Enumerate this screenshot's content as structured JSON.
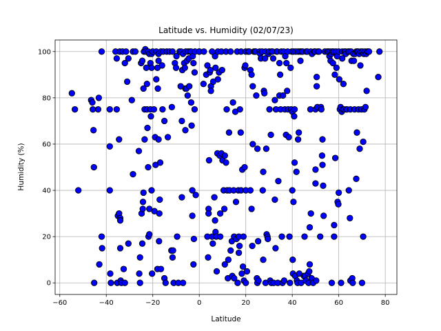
{
  "chart_data": {
    "type": "scatter",
    "title": "Latitude vs. Humidity (02/07/23)",
    "xlabel": "Latitude",
    "ylabel": "Humidity (%)",
    "xlim": [
      -62,
      85
    ],
    "ylim": [
      -5,
      105
    ],
    "xticks": [
      -60,
      -40,
      -20,
      0,
      20,
      40,
      60,
      80
    ],
    "yticks": [
      0,
      20,
      40,
      60,
      80,
      100
    ],
    "grid": true,
    "marker_color": "#0000ff",
    "marker_edge": "#000000",
    "points": [
      [
        -54.8,
        82
      ],
      [
        -53.5,
        75
      ],
      [
        -52,
        40
      ],
      [
        -46.5,
        79
      ],
      [
        -46,
        78
      ],
      [
        -45.8,
        75
      ],
      [
        -45.5,
        66
      ],
      [
        -45.3,
        50
      ],
      [
        -45.2,
        0
      ],
      [
        -43.5,
        75
      ],
      [
        -43.2,
        80
      ],
      [
        -43,
        8
      ],
      [
        -42,
        100
      ],
      [
        -42,
        20
      ],
      [
        -41.8,
        15
      ],
      [
        -38.5,
        75
      ],
      [
        -38.5,
        59
      ],
      [
        -38.5,
        40
      ],
      [
        -38.3,
        4
      ],
      [
        -38,
        0
      ],
      [
        -36,
        100
      ],
      [
        -35.5,
        97
      ],
      [
        -35.5,
        75
      ],
      [
        -35.3,
        0
      ],
      [
        -35,
        29
      ],
      [
        -34.5,
        62
      ],
      [
        -34.5,
        30
      ],
      [
        -34.2,
        100
      ],
      [
        -34,
        28
      ],
      [
        -34,
        27
      ],
      [
        -34,
        15
      ],
      [
        -33.8,
        1
      ],
      [
        -33.5,
        0
      ],
      [
        -33,
        100
      ],
      [
        -32.5,
        6
      ],
      [
        -32,
        95
      ],
      [
        -32,
        0
      ],
      [
        -31.5,
        100
      ],
      [
        -31,
        87
      ],
      [
        -30.5,
        97
      ],
      [
        -30.5,
        17
      ],
      [
        -29,
        79
      ],
      [
        -28.5,
        47
      ],
      [
        -28.5,
        100
      ],
      [
        -27.5,
        100
      ],
      [
        -26,
        57
      ],
      [
        -25.8,
        4
      ],
      [
        -25.5,
        0
      ],
      [
        -25.5,
        11
      ],
      [
        -25,
        95
      ],
      [
        -24.8,
        30
      ],
      [
        -24.5,
        96
      ],
      [
        -24.5,
        17
      ],
      [
        -24.3,
        32
      ],
      [
        -24.2,
        35
      ],
      [
        -24,
        84
      ],
      [
        -24,
        39
      ],
      [
        -23.8,
        100
      ],
      [
        -23.5,
        75
      ],
      [
        -23.5,
        62
      ],
      [
        -23.2,
        101
      ],
      [
        -23,
        100
      ],
      [
        -22.8,
        93
      ],
      [
        -22.5,
        86
      ],
      [
        -22.5,
        75
      ],
      [
        -22.3,
        67
      ],
      [
        -22,
        50
      ],
      [
        -22,
        100
      ],
      [
        -21.8,
        20
      ],
      [
        -21.5,
        99
      ],
      [
        -21.5,
        32
      ],
      [
        -21.5,
        21
      ],
      [
        -21,
        95
      ],
      [
        -21,
        75
      ],
      [
        -20.8,
        72
      ],
      [
        -20.5,
        93
      ],
      [
        -20.5,
        99
      ],
      [
        -20.5,
        40
      ],
      [
        -20.3,
        4
      ],
      [
        -20,
        100
      ],
      [
        -19.5,
        75
      ],
      [
        -19.3,
        31
      ],
      [
        -19,
        63
      ],
      [
        -18.8,
        51
      ],
      [
        -18.5,
        100
      ],
      [
        -18.5,
        88
      ],
      [
        -18,
        93
      ],
      [
        -18,
        6
      ],
      [
        -17.8,
        84
      ],
      [
        -17.5,
        96
      ],
      [
        -17.5,
        99
      ],
      [
        -17.5,
        62
      ],
      [
        -17.3,
        18
      ],
      [
        -17.2,
        30
      ],
      [
        -17,
        36
      ],
      [
        -16.8,
        52
      ],
      [
        -16.5,
        100
      ],
      [
        -16.5,
        6
      ],
      [
        -16,
        94
      ],
      [
        -15.8,
        75
      ],
      [
        -15.5,
        100
      ],
      [
        -15,
        70
      ],
      [
        -15,
        2
      ],
      [
        -14.5,
        0
      ],
      [
        -14,
        100
      ],
      [
        -13.5,
        63
      ],
      [
        -12.8,
        100
      ],
      [
        -12,
        14
      ],
      [
        -11.8,
        76
      ],
      [
        -11.5,
        100
      ],
      [
        -11.5,
        11
      ],
      [
        -11.3,
        14
      ],
      [
        -11,
        0
      ],
      [
        -10.5,
        95
      ],
      [
        -10,
        93
      ],
      [
        -9.8,
        98
      ],
      [
        -9.5,
        20
      ],
      [
        -9,
        0
      ],
      [
        -8.5,
        100
      ],
      [
        -8,
        85
      ],
      [
        -7.8,
        100
      ],
      [
        -7.5,
        70
      ],
      [
        -7.5,
        37
      ],
      [
        -7.3,
        92
      ],
      [
        -7,
        99
      ],
      [
        -7,
        0
      ],
      [
        -6.5,
        95
      ],
      [
        -6.2,
        93
      ],
      [
        -6,
        66
      ],
      [
        -6,
        84
      ],
      [
        -5.8,
        100
      ],
      [
        -5.5,
        84
      ],
      [
        -5.3,
        96
      ],
      [
        -5,
        81
      ],
      [
        -4.8,
        100
      ],
      [
        -4.5,
        97
      ],
      [
        -4.3,
        85
      ],
      [
        -4,
        100
      ],
      [
        -3.5,
        100
      ],
      [
        -3.5,
        78
      ],
      [
        -3.3,
        68
      ],
      [
        -3,
        40
      ],
      [
        -3,
        29
      ],
      [
        -2.8,
        98
      ],
      [
        -2.5,
        95
      ],
      [
        -2.5,
        8
      ],
      [
        -2.3,
        19
      ],
      [
        -2,
        91
      ],
      [
        -2,
        75
      ],
      [
        -1.8,
        100
      ],
      [
        -1.5,
        38
      ],
      [
        0,
        100
      ],
      [
        0,
        100
      ],
      [
        1.8,
        86
      ],
      [
        2,
        100
      ],
      [
        3,
        90
      ],
      [
        3.5,
        94
      ],
      [
        3.5,
        20
      ],
      [
        3.8,
        11
      ],
      [
        4,
        32
      ],
      [
        4,
        30
      ],
      [
        4.2,
        53
      ],
      [
        4.5,
        91
      ],
      [
        4.8,
        92
      ],
      [
        5,
        85
      ],
      [
        5,
        83
      ],
      [
        5.5,
        100
      ],
      [
        5.5,
        20
      ],
      [
        5.8,
        17
      ],
      [
        6,
        87
      ],
      [
        6.5,
        37
      ],
      [
        6.8,
        98
      ],
      [
        6.8,
        27
      ],
      [
        7,
        93
      ],
      [
        7,
        22
      ],
      [
        7.3,
        20
      ],
      [
        7.5,
        5
      ],
      [
        7.8,
        56
      ],
      [
        8,
        100
      ],
      [
        8,
        88
      ],
      [
        8.5,
        91
      ],
      [
        8.8,
        55
      ],
      [
        9,
        30
      ],
      [
        9,
        20
      ],
      [
        9.5,
        100
      ],
      [
        9.5,
        56
      ],
      [
        9.8,
        92
      ],
      [
        10,
        53
      ],
      [
        10.5,
        40
      ],
      [
        10.8,
        32
      ],
      [
        11,
        8
      ],
      [
        11,
        55
      ],
      [
        11.5,
        52
      ],
      [
        11.5,
        100
      ],
      [
        11.8,
        75
      ],
      [
        12,
        40
      ],
      [
        12.3,
        2
      ],
      [
        12.5,
        10
      ],
      [
        12.8,
        65
      ],
      [
        13,
        40
      ],
      [
        13.5,
        100
      ],
      [
        13.5,
        14
      ],
      [
        14,
        18
      ],
      [
        14.2,
        3
      ],
      [
        14.5,
        78
      ],
      [
        14.8,
        40
      ],
      [
        15,
        20
      ],
      [
        15,
        2
      ],
      [
        15.5,
        74
      ],
      [
        15.8,
        35
      ],
      [
        16,
        19
      ],
      [
        16.3,
        100
      ],
      [
        16.5,
        0
      ],
      [
        16.8,
        40
      ],
      [
        17,
        20
      ],
      [
        17,
        13
      ],
      [
        17.3,
        16
      ],
      [
        17.5,
        75
      ],
      [
        17.8,
        65
      ],
      [
        18,
        100
      ],
      [
        18,
        40
      ],
      [
        18.3,
        4
      ],
      [
        18.5,
        49
      ],
      [
        18.8,
        7
      ],
      [
        19,
        20
      ],
      [
        19.2,
        1
      ],
      [
        19.5,
        93
      ],
      [
        19.5,
        50
      ],
      [
        19.8,
        94
      ],
      [
        20,
        40
      ],
      [
        20,
        0
      ],
      [
        20,
        100
      ],
      [
        20.5,
        5
      ],
      [
        21,
        100
      ],
      [
        21.5,
        100
      ],
      [
        22,
        92
      ],
      [
        22,
        40
      ],
      [
        22.5,
        32
      ],
      [
        22.5,
        90
      ],
      [
        22.8,
        16
      ],
      [
        23,
        85
      ],
      [
        23,
        60
      ],
      [
        23.5,
        100
      ],
      [
        24,
        100
      ],
      [
        24.3,
        100
      ],
      [
        24.5,
        81
      ],
      [
        24.8,
        2
      ],
      [
        25,
        0
      ],
      [
        25,
        58
      ],
      [
        25.3,
        18
      ],
      [
        25.5,
        1
      ],
      [
        26,
        100
      ],
      [
        26.2,
        99
      ],
      [
        26.5,
        97
      ],
      [
        27,
        100
      ],
      [
        27.3,
        40
      ],
      [
        27.5,
        48
      ],
      [
        27.5,
        10
      ],
      [
        27.8,
        83
      ],
      [
        28,
        82
      ],
      [
        28.3,
        97
      ],
      [
        28.5,
        0
      ],
      [
        28.5,
        100
      ],
      [
        28.8,
        58
      ],
      [
        29,
        21
      ],
      [
        29.3,
        20
      ],
      [
        29.5,
        19
      ],
      [
        29.8,
        99
      ],
      [
        30,
        100
      ],
      [
        30.2,
        75
      ],
      [
        30.5,
        1
      ],
      [
        30.8,
        64
      ],
      [
        31,
        100
      ],
      [
        31,
        0
      ],
      [
        31.5,
        100
      ],
      [
        31.8,
        97
      ],
      [
        32,
        0
      ],
      [
        32.5,
        79
      ],
      [
        32.5,
        36
      ],
      [
        32.8,
        15
      ],
      [
        33,
        75
      ],
      [
        33.3,
        100
      ],
      [
        33.5,
        100
      ],
      [
        33.8,
        0
      ],
      [
        34,
        44
      ],
      [
        34.5,
        95
      ],
      [
        34.5,
        81
      ],
      [
        34.8,
        90
      ],
      [
        35,
        75
      ],
      [
        35.3,
        100
      ],
      [
        35.5,
        20
      ],
      [
        35.8,
        0
      ],
      [
        36,
        81
      ],
      [
        36.3,
        100
      ],
      [
        36.5,
        1
      ],
      [
        36.8,
        75
      ],
      [
        37,
        98
      ],
      [
        37.3,
        64
      ],
      [
        37.5,
        95
      ],
      [
        37.8,
        83
      ],
      [
        38,
        100
      ],
      [
        38.2,
        75
      ],
      [
        38.5,
        63
      ],
      [
        38.8,
        20
      ],
      [
        39,
        0
      ],
      [
        39.3,
        93
      ],
      [
        39.5,
        75
      ],
      [
        39.8,
        100
      ],
      [
        40,
        74
      ],
      [
        40,
        40
      ],
      [
        40.2,
        10
      ],
      [
        40.3,
        4
      ],
      [
        40.5,
        100
      ],
      [
        40.5,
        35
      ],
      [
        40.8,
        72
      ],
      [
        41,
        75
      ],
      [
        41,
        52
      ],
      [
        41.3,
        3
      ],
      [
        41.5,
        100
      ],
      [
        41.8,
        48
      ],
      [
        42,
        1
      ],
      [
        42.3,
        0
      ],
      [
        42.5,
        100
      ],
      [
        42.5,
        62
      ],
      [
        42.8,
        65
      ],
      [
        43,
        4
      ],
      [
        43.3,
        100
      ],
      [
        43.5,
        96
      ],
      [
        43.8,
        0
      ],
      [
        44,
        100
      ],
      [
        44.5,
        100
      ],
      [
        45,
        3
      ],
      [
        45.3,
        20
      ],
      [
        45.5,
        3
      ],
      [
        45.8,
        1
      ],
      [
        46,
        100
      ],
      [
        46.5,
        100
      ],
      [
        46.8,
        4
      ],
      [
        47,
        0
      ],
      [
        47.3,
        5
      ],
      [
        47.5,
        24
      ],
      [
        47.5,
        8
      ],
      [
        47.8,
        75
      ],
      [
        48,
        30
      ],
      [
        48,
        100
      ],
      [
        48.3,
        2
      ],
      [
        48.5,
        99
      ],
      [
        49,
        0
      ],
      [
        49.5,
        100
      ],
      [
        49.8,
        100
      ],
      [
        50,
        75
      ],
      [
        50,
        49
      ],
      [
        50,
        43
      ],
      [
        50.3,
        1
      ],
      [
        50.5,
        89
      ],
      [
        50.5,
        85
      ],
      [
        50.8,
        76
      ],
      [
        51,
        100
      ],
      [
        51.5,
        100
      ],
      [
        52,
        20
      ],
      [
        52.3,
        76
      ],
      [
        52.5,
        75
      ],
      [
        52.8,
        55
      ],
      [
        53,
        62
      ],
      [
        53,
        51
      ],
      [
        53.3,
        42
      ],
      [
        53.5,
        29
      ],
      [
        54,
        100
      ],
      [
        55,
        100
      ],
      [
        55.5,
        100
      ],
      [
        56,
        98
      ],
      [
        56.3,
        100
      ],
      [
        56.5,
        96
      ],
      [
        56.8,
        99
      ],
      [
        57,
        0
      ],
      [
        57.2,
        100
      ],
      [
        57.5,
        95
      ],
      [
        57.8,
        100
      ],
      [
        58,
        20
      ],
      [
        58,
        25
      ],
      [
        58.3,
        90
      ],
      [
        58.5,
        54
      ],
      [
        58.8,
        100
      ],
      [
        59,
        93
      ],
      [
        59.3,
        98
      ],
      [
        59.5,
        35
      ],
      [
        59.8,
        34
      ],
      [
        60,
        100
      ],
      [
        60,
        39
      ],
      [
        60.2,
        88
      ],
      [
        60.5,
        75
      ],
      [
        60.8,
        76
      ],
      [
        61,
        0
      ],
      [
        61.3,
        74
      ],
      [
        61.5,
        100
      ],
      [
        61.5,
        97
      ],
      [
        61.8,
        75
      ],
      [
        62,
        86
      ],
      [
        62.3,
        75
      ],
      [
        62.5,
        100
      ],
      [
        62.8,
        100
      ],
      [
        63,
        99
      ],
      [
        63.3,
        75
      ],
      [
        63.5,
        75
      ],
      [
        64,
        100
      ],
      [
        64.3,
        40
      ],
      [
        64.5,
        100
      ],
      [
        64.8,
        28
      ],
      [
        65,
        75
      ],
      [
        65,
        1
      ],
      [
        65.3,
        100
      ],
      [
        65.5,
        96
      ],
      [
        65.8,
        2
      ],
      [
        66,
        0
      ],
      [
        66.3,
        99
      ],
      [
        66.5,
        96
      ],
      [
        66.8,
        75
      ],
      [
        67,
        99
      ],
      [
        67.5,
        45
      ],
      [
        67.5,
        100
      ],
      [
        67.8,
        65
      ],
      [
        68,
        100
      ],
      [
        68.3,
        100
      ],
      [
        68.5,
        75
      ],
      [
        68.8,
        99
      ],
      [
        69,
        58
      ],
      [
        69.3,
        94
      ],
      [
        69.5,
        100
      ],
      [
        69.8,
        75
      ],
      [
        70,
        0
      ],
      [
        70.2,
        100
      ],
      [
        70.5,
        61
      ],
      [
        70.5,
        20
      ],
      [
        70.8,
        99
      ],
      [
        71,
        75
      ],
      [
        71.3,
        100
      ],
      [
        71.5,
        76
      ],
      [
        71.8,
        99
      ],
      [
        72,
        83
      ],
      [
        72.3,
        100
      ],
      [
        72.5,
        100
      ],
      [
        73,
        100
      ],
      [
        77,
        89
      ],
      [
        77.5,
        100
      ]
    ]
  }
}
